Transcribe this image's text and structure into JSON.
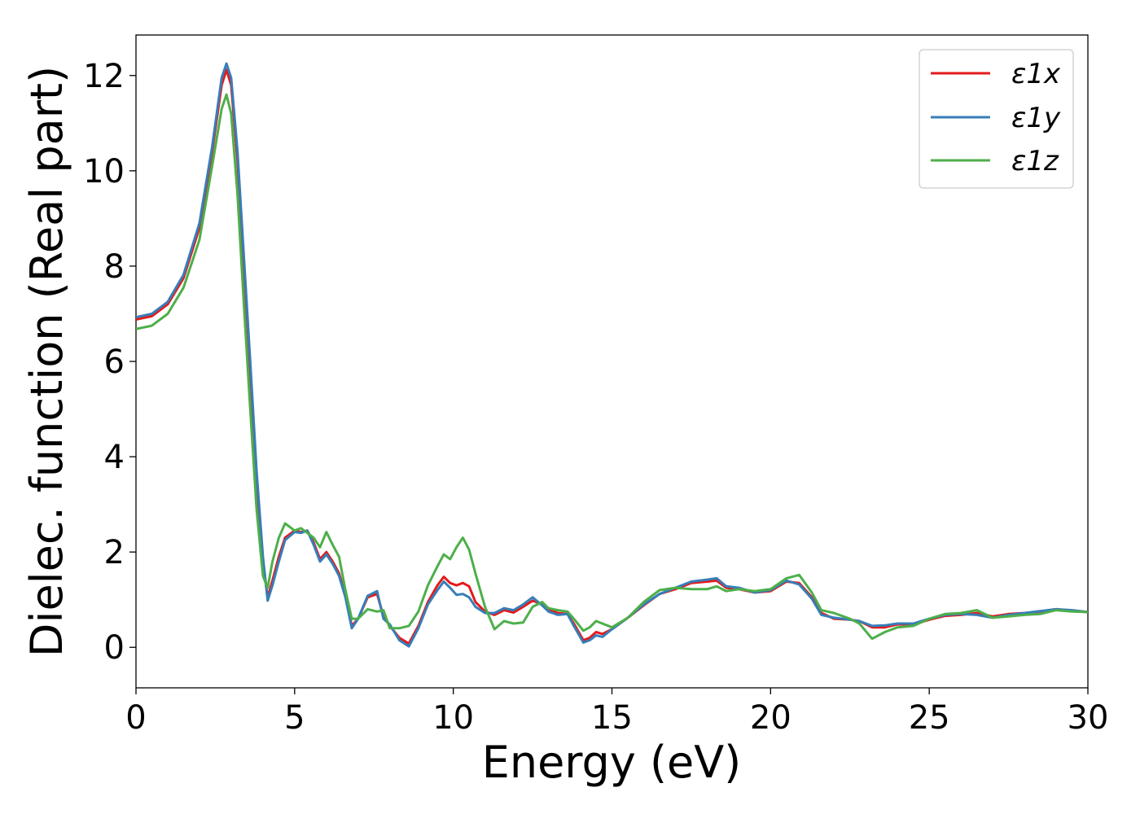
{
  "chart_data": {
    "type": "line",
    "title": "",
    "xlabel": "Energy (eV)",
    "ylabel": "Dielec. function (Real part)",
    "xlim": [
      0,
      30
    ],
    "ylim": [
      -0.85,
      12.85
    ],
    "xticks": [
      0,
      5,
      10,
      15,
      20,
      25,
      30
    ],
    "yticks": [
      0,
      2,
      4,
      6,
      8,
      10,
      12
    ],
    "grid": false,
    "legend": "top-right",
    "colors": {
      "x": "#e41a1c",
      "y": "#377eb8",
      "z": "#4daf4a"
    },
    "series": [
      {
        "name": "ε1x",
        "color": "#e41a1c",
        "points": [
          [
            0,
            6.88
          ],
          [
            0.5,
            6.95
          ],
          [
            1.0,
            7.2
          ],
          [
            1.5,
            7.75
          ],
          [
            2.0,
            8.8
          ],
          [
            2.4,
            10.4
          ],
          [
            2.7,
            11.8
          ],
          [
            2.85,
            12.12
          ],
          [
            3.0,
            11.8
          ],
          [
            3.2,
            10.2
          ],
          [
            3.4,
            8.0
          ],
          [
            3.6,
            5.8
          ],
          [
            3.8,
            3.5
          ],
          [
            4.0,
            1.8
          ],
          [
            4.15,
            1.05
          ],
          [
            4.3,
            1.4
          ],
          [
            4.5,
            1.9
          ],
          [
            4.7,
            2.3
          ],
          [
            5.0,
            2.45
          ],
          [
            5.2,
            2.42
          ],
          [
            5.4,
            2.45
          ],
          [
            5.6,
            2.2
          ],
          [
            5.8,
            1.85
          ],
          [
            6.0,
            2.0
          ],
          [
            6.2,
            1.8
          ],
          [
            6.4,
            1.55
          ],
          [
            6.6,
            1.1
          ],
          [
            6.8,
            0.45
          ],
          [
            7.0,
            0.6
          ],
          [
            7.3,
            1.05
          ],
          [
            7.6,
            1.12
          ],
          [
            7.8,
            0.65
          ],
          [
            8.0,
            0.45
          ],
          [
            8.3,
            0.2
          ],
          [
            8.6,
            0.08
          ],
          [
            8.9,
            0.45
          ],
          [
            9.2,
            0.95
          ],
          [
            9.5,
            1.3
          ],
          [
            9.7,
            1.48
          ],
          [
            9.9,
            1.35
          ],
          [
            10.1,
            1.3
          ],
          [
            10.3,
            1.35
          ],
          [
            10.5,
            1.28
          ],
          [
            10.7,
            0.95
          ],
          [
            11.0,
            0.75
          ],
          [
            11.3,
            0.68
          ],
          [
            11.6,
            0.78
          ],
          [
            11.9,
            0.73
          ],
          [
            12.2,
            0.85
          ],
          [
            12.5,
            0.98
          ],
          [
            12.8,
            0.9
          ],
          [
            13.0,
            0.8
          ],
          [
            13.3,
            0.72
          ],
          [
            13.6,
            0.7
          ],
          [
            13.8,
            0.5
          ],
          [
            14.1,
            0.15
          ],
          [
            14.3,
            0.2
          ],
          [
            14.5,
            0.32
          ],
          [
            14.7,
            0.28
          ],
          [
            15.0,
            0.38
          ],
          [
            15.5,
            0.62
          ],
          [
            16.0,
            0.88
          ],
          [
            16.5,
            1.12
          ],
          [
            17.0,
            1.22
          ],
          [
            17.5,
            1.35
          ],
          [
            18.0,
            1.38
          ],
          [
            18.3,
            1.4
          ],
          [
            18.6,
            1.25
          ],
          [
            19.0,
            1.22
          ],
          [
            19.5,
            1.15
          ],
          [
            20.0,
            1.18
          ],
          [
            20.5,
            1.38
          ],
          [
            20.9,
            1.35
          ],
          [
            21.3,
            1.05
          ],
          [
            21.6,
            0.72
          ],
          [
            22.0,
            0.6
          ],
          [
            22.5,
            0.58
          ],
          [
            22.8,
            0.55
          ],
          [
            23.2,
            0.42
          ],
          [
            23.6,
            0.42
          ],
          [
            24.0,
            0.48
          ],
          [
            24.5,
            0.48
          ],
          [
            25.0,
            0.58
          ],
          [
            25.5,
            0.66
          ],
          [
            26.0,
            0.68
          ],
          [
            26.5,
            0.72
          ],
          [
            27.0,
            0.65
          ],
          [
            27.5,
            0.7
          ],
          [
            28.0,
            0.72
          ],
          [
            28.5,
            0.75
          ],
          [
            29.0,
            0.8
          ],
          [
            29.5,
            0.76
          ],
          [
            30,
            0.74
          ]
        ]
      },
      {
        "name": "ε1y",
        "color": "#377eb8",
        "points": [
          [
            0,
            6.93
          ],
          [
            0.5,
            7.0
          ],
          [
            1.0,
            7.25
          ],
          [
            1.5,
            7.82
          ],
          [
            2.0,
            8.9
          ],
          [
            2.4,
            10.5
          ],
          [
            2.7,
            11.95
          ],
          [
            2.85,
            12.25
          ],
          [
            3.0,
            11.95
          ],
          [
            3.2,
            10.4
          ],
          [
            3.4,
            8.2
          ],
          [
            3.6,
            6.0
          ],
          [
            3.8,
            3.7
          ],
          [
            4.0,
            1.9
          ],
          [
            4.15,
            0.98
          ],
          [
            4.3,
            1.3
          ],
          [
            4.5,
            1.8
          ],
          [
            4.7,
            2.25
          ],
          [
            5.0,
            2.42
          ],
          [
            5.2,
            2.4
          ],
          [
            5.4,
            2.45
          ],
          [
            5.6,
            2.15
          ],
          [
            5.8,
            1.8
          ],
          [
            6.0,
            1.95
          ],
          [
            6.2,
            1.75
          ],
          [
            6.4,
            1.5
          ],
          [
            6.6,
            1.05
          ],
          [
            6.8,
            0.4
          ],
          [
            7.0,
            0.6
          ],
          [
            7.3,
            1.08
          ],
          [
            7.6,
            1.18
          ],
          [
            7.8,
            0.6
          ],
          [
            8.0,
            0.48
          ],
          [
            8.3,
            0.15
          ],
          [
            8.6,
            0.02
          ],
          [
            8.9,
            0.4
          ],
          [
            9.2,
            0.9
          ],
          [
            9.5,
            1.2
          ],
          [
            9.7,
            1.38
          ],
          [
            9.9,
            1.25
          ],
          [
            10.1,
            1.1
          ],
          [
            10.3,
            1.12
          ],
          [
            10.5,
            1.05
          ],
          [
            10.7,
            0.85
          ],
          [
            11.0,
            0.72
          ],
          [
            11.3,
            0.72
          ],
          [
            11.6,
            0.82
          ],
          [
            11.9,
            0.78
          ],
          [
            12.2,
            0.9
          ],
          [
            12.5,
            1.05
          ],
          [
            12.8,
            0.88
          ],
          [
            13.0,
            0.75
          ],
          [
            13.3,
            0.68
          ],
          [
            13.6,
            0.7
          ],
          [
            13.8,
            0.45
          ],
          [
            14.1,
            0.1
          ],
          [
            14.3,
            0.15
          ],
          [
            14.5,
            0.25
          ],
          [
            14.7,
            0.22
          ],
          [
            15.0,
            0.38
          ],
          [
            15.5,
            0.62
          ],
          [
            16.0,
            0.9
          ],
          [
            16.5,
            1.12
          ],
          [
            17.0,
            1.25
          ],
          [
            17.5,
            1.38
          ],
          [
            18.0,
            1.42
          ],
          [
            18.3,
            1.45
          ],
          [
            18.6,
            1.28
          ],
          [
            19.0,
            1.25
          ],
          [
            19.5,
            1.15
          ],
          [
            20.0,
            1.2
          ],
          [
            20.5,
            1.4
          ],
          [
            20.9,
            1.32
          ],
          [
            21.3,
            1.02
          ],
          [
            21.6,
            0.68
          ],
          [
            22.0,
            0.62
          ],
          [
            22.5,
            0.58
          ],
          [
            22.8,
            0.55
          ],
          [
            23.2,
            0.45
          ],
          [
            23.6,
            0.46
          ],
          [
            24.0,
            0.5
          ],
          [
            24.5,
            0.5
          ],
          [
            25.0,
            0.6
          ],
          [
            25.5,
            0.68
          ],
          [
            26.0,
            0.7
          ],
          [
            26.5,
            0.68
          ],
          [
            27.0,
            0.62
          ],
          [
            27.5,
            0.68
          ],
          [
            28.0,
            0.72
          ],
          [
            28.5,
            0.76
          ],
          [
            29.0,
            0.8
          ],
          [
            29.5,
            0.78
          ],
          [
            30,
            0.74
          ]
        ]
      },
      {
        "name": "ε1z",
        "color": "#4daf4a",
        "points": [
          [
            0,
            6.68
          ],
          [
            0.5,
            6.75
          ],
          [
            1.0,
            7.0
          ],
          [
            1.5,
            7.55
          ],
          [
            2.0,
            8.55
          ],
          [
            2.4,
            10.1
          ],
          [
            2.7,
            11.3
          ],
          [
            2.85,
            11.6
          ],
          [
            3.0,
            11.2
          ],
          [
            3.2,
            9.5
          ],
          [
            3.4,
            7.2
          ],
          [
            3.6,
            5.0
          ],
          [
            3.8,
            2.9
          ],
          [
            4.0,
            1.5
          ],
          [
            4.15,
            1.25
          ],
          [
            4.3,
            1.8
          ],
          [
            4.5,
            2.3
          ],
          [
            4.7,
            2.6
          ],
          [
            5.0,
            2.45
          ],
          [
            5.2,
            2.5
          ],
          [
            5.4,
            2.4
          ],
          [
            5.6,
            2.3
          ],
          [
            5.8,
            2.1
          ],
          [
            6.0,
            2.42
          ],
          [
            6.2,
            2.15
          ],
          [
            6.4,
            1.9
          ],
          [
            6.6,
            1.2
          ],
          [
            6.8,
            0.6
          ],
          [
            7.0,
            0.6
          ],
          [
            7.3,
            0.8
          ],
          [
            7.6,
            0.75
          ],
          [
            7.8,
            0.78
          ],
          [
            8.0,
            0.4
          ],
          [
            8.3,
            0.4
          ],
          [
            8.6,
            0.45
          ],
          [
            8.9,
            0.75
          ],
          [
            9.2,
            1.3
          ],
          [
            9.5,
            1.7
          ],
          [
            9.7,
            1.95
          ],
          [
            9.9,
            1.85
          ],
          [
            10.1,
            2.1
          ],
          [
            10.3,
            2.3
          ],
          [
            10.5,
            2.05
          ],
          [
            10.7,
            1.55
          ],
          [
            11.0,
            0.85
          ],
          [
            11.3,
            0.38
          ],
          [
            11.6,
            0.55
          ],
          [
            11.9,
            0.5
          ],
          [
            12.2,
            0.52
          ],
          [
            12.5,
            0.85
          ],
          [
            12.8,
            0.95
          ],
          [
            13.0,
            0.82
          ],
          [
            13.3,
            0.78
          ],
          [
            13.6,
            0.75
          ],
          [
            13.8,
            0.6
          ],
          [
            14.1,
            0.35
          ],
          [
            14.3,
            0.42
          ],
          [
            14.5,
            0.55
          ],
          [
            14.7,
            0.5
          ],
          [
            15.0,
            0.42
          ],
          [
            15.5,
            0.62
          ],
          [
            16.0,
            0.95
          ],
          [
            16.5,
            1.2
          ],
          [
            17.0,
            1.25
          ],
          [
            17.5,
            1.22
          ],
          [
            18.0,
            1.22
          ],
          [
            18.3,
            1.28
          ],
          [
            18.6,
            1.18
          ],
          [
            19.0,
            1.22
          ],
          [
            19.5,
            1.18
          ],
          [
            20.0,
            1.22
          ],
          [
            20.5,
            1.45
          ],
          [
            20.9,
            1.52
          ],
          [
            21.3,
            1.15
          ],
          [
            21.6,
            0.78
          ],
          [
            22.0,
            0.72
          ],
          [
            22.5,
            0.6
          ],
          [
            22.8,
            0.5
          ],
          [
            23.2,
            0.18
          ],
          [
            23.6,
            0.32
          ],
          [
            24.0,
            0.42
          ],
          [
            24.5,
            0.45
          ],
          [
            25.0,
            0.6
          ],
          [
            25.5,
            0.7
          ],
          [
            26.0,
            0.72
          ],
          [
            26.5,
            0.78
          ],
          [
            27.0,
            0.62
          ],
          [
            27.5,
            0.65
          ],
          [
            28.0,
            0.68
          ],
          [
            28.5,
            0.7
          ],
          [
            29.0,
            0.78
          ],
          [
            29.5,
            0.75
          ],
          [
            30,
            0.74
          ]
        ]
      }
    ]
  }
}
